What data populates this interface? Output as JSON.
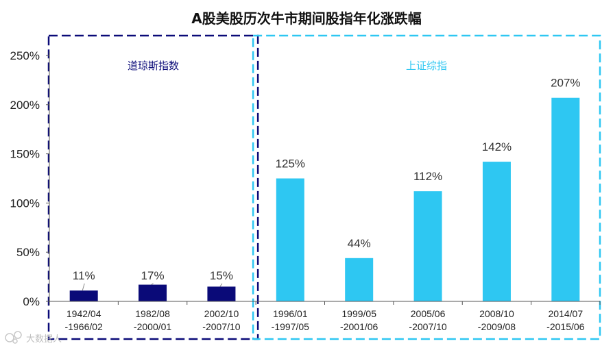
{
  "chart_data": {
    "type": "bar",
    "title": "A股美股历次牛市期间股指年化涨跌幅",
    "ylim": [
      0,
      250
    ],
    "yticks": [
      0,
      50,
      100,
      150,
      200,
      250
    ],
    "ytick_labels": [
      "0%",
      "50%",
      "100%",
      "150%",
      "200%",
      "250%"
    ],
    "grid": false,
    "groups": [
      {
        "name": "道琼斯指数",
        "color": "#0a0a78",
        "border_color": "#0a0a78",
        "categories": [
          [
            "1942/04",
            "-1966/02"
          ],
          [
            "1982/08",
            "-2000/01"
          ],
          [
            "2002/10",
            "-2007/10"
          ]
        ],
        "values": [
          11,
          17,
          15
        ],
        "value_labels": [
          "11%",
          "17%",
          "15%"
        ]
      },
      {
        "name": "上证综指",
        "color": "#2ec7f2",
        "border_color": "#2ec7f2",
        "categories": [
          [
            "1996/01",
            "-1997/05"
          ],
          [
            "1999/05",
            "-2001/06"
          ],
          [
            "2005/06",
            "-2007/10"
          ],
          [
            "2008/10",
            "-2009/08"
          ],
          [
            "2014/07",
            "-2015/06"
          ]
        ],
        "values": [
          125,
          44,
          112,
          142,
          207
        ],
        "value_labels": [
          "125%",
          "44%",
          "112%",
          "142%",
          "207%"
        ]
      }
    ]
  },
  "watermark": {
    "text": "大数据人",
    "icon": "logo-icon"
  }
}
